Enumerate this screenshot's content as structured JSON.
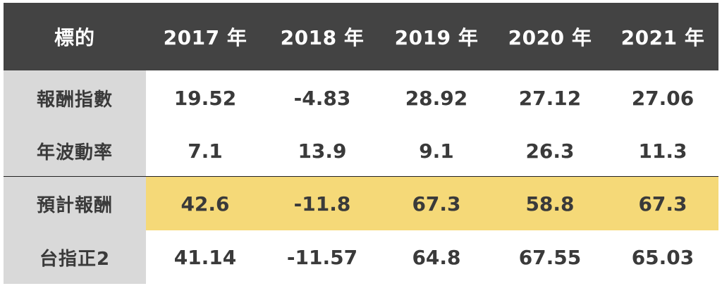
{
  "table": {
    "header": {
      "label": "標的",
      "years": [
        "2017 年",
        "2018 年",
        "2019 年",
        "2020 年",
        "2021 年"
      ]
    },
    "rows": [
      {
        "label": "報酬指數",
        "values": [
          "19.52",
          "-4.83",
          "28.92",
          "27.12",
          "27.06"
        ]
      },
      {
        "label": "年波動率",
        "values": [
          "7.1",
          "13.9",
          "9.1",
          "26.3",
          "11.3"
        ]
      },
      {
        "label": "預計報酬",
        "values": [
          "42.6",
          "-11.8",
          "67.3",
          "58.8",
          "67.3"
        ]
      },
      {
        "label": "台指正2",
        "values": [
          "41.14",
          "-11.57",
          "64.8",
          "67.55",
          "65.03"
        ]
      }
    ]
  },
  "colors": {
    "header_bg": "#434343",
    "label_bg": "#d9d9d9",
    "highlight_bg": "#f5d978",
    "text": "#3a3a3a"
  }
}
